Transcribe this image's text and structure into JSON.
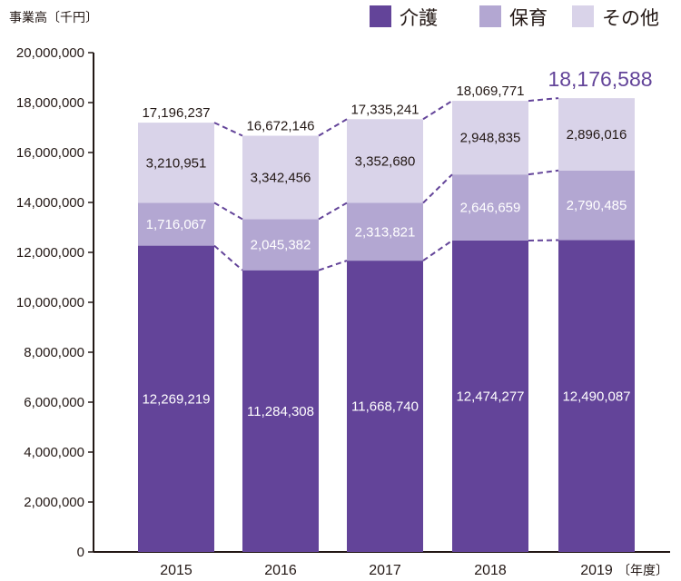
{
  "chart_data": {
    "type": "bar",
    "stacked": true,
    "y_unit_label": "事業高〔千円〕",
    "x_unit_label": "〔年度〕",
    "categories": [
      "2015",
      "2016",
      "2017",
      "2018",
      "2019"
    ],
    "ylim": [
      0,
      20000000
    ],
    "yticks": [
      0,
      2000000,
      4000000,
      6000000,
      8000000,
      10000000,
      12000000,
      14000000,
      16000000,
      18000000,
      20000000
    ],
    "ytick_labels": [
      "0",
      "2,000,000",
      "4,000,000",
      "6,000,000",
      "8,000,000",
      "10,000,000",
      "12,000,000",
      "14,000,000",
      "16,000,000",
      "18,000,000",
      "20,000,000"
    ],
    "grid": false,
    "legend_position": "top-right",
    "series": [
      {
        "name": "介護",
        "color": "#634499",
        "label_color": "#ffffff",
        "values": [
          12269219,
          11284308,
          11668740,
          12474277,
          12490087
        ],
        "labels": [
          "12,269,219",
          "11,284,308",
          "11,668,740",
          "12,474,277",
          "12,490,087"
        ]
      },
      {
        "name": "保育",
        "color": "#b3a7d2",
        "label_color": "#ffffff",
        "values": [
          1716067,
          2045382,
          2313821,
          2646659,
          2790485
        ],
        "labels": [
          "1,716,067",
          "2,045,382",
          "2,313,821",
          "2,646,659",
          "2,790,485"
        ]
      },
      {
        "name": "その他",
        "color": "#d9d3e9",
        "label_color": "#231815",
        "values": [
          3210951,
          3342456,
          3352680,
          2948835,
          2896016
        ],
        "labels": [
          "3,210,951",
          "3,342,456",
          "3,352,680",
          "2,948,835",
          "2,896,016"
        ]
      }
    ],
    "totals": [
      17196237,
      16672146,
      17335241,
      18069771,
      18176588
    ],
    "total_labels": [
      "17,196,237",
      "16,672,146",
      "17,335,241",
      "18,069,771",
      "18,176,588"
    ],
    "highlight_total_color": "#634499",
    "connector_color": "#634499",
    "axis_color": "#231815"
  }
}
